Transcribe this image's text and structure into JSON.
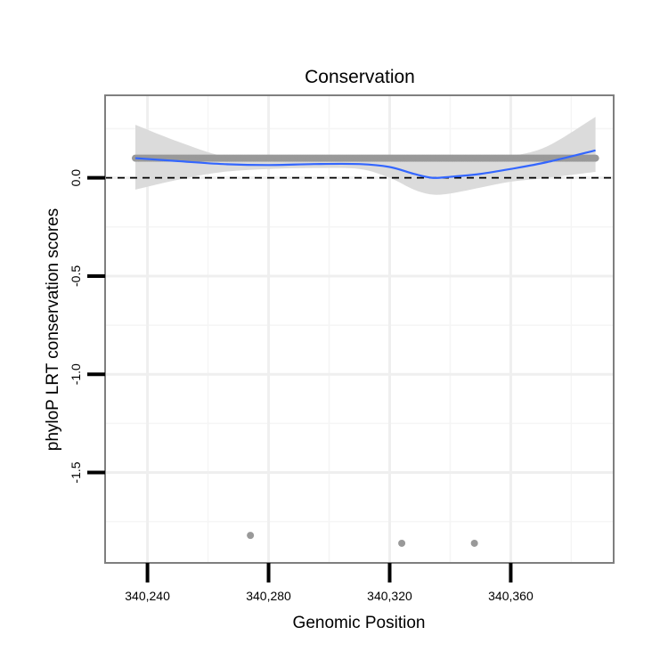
{
  "chart_data": {
    "type": "scatter",
    "title": "Conservation",
    "xlabel": "Genomic Position",
    "ylabel": "phyloP LRT conservation scores",
    "xlim": [
      340226,
      340394
    ],
    "ylim": [
      -1.96,
      0.42
    ],
    "x_ticks": [
      340240,
      340280,
      340320,
      340360
    ],
    "x_tick_labels": [
      "340,240",
      "340,280",
      "340,320",
      "340,360"
    ],
    "y_ticks": [
      0.0,
      -0.5,
      -1.0,
      -1.5
    ],
    "y_tick_labels": [
      "0.0",
      "-0.5",
      "-1.0",
      "-1.5"
    ],
    "grid": true,
    "reference_line": {
      "y": 0.0,
      "style": "dashed",
      "color": "#000000"
    },
    "dense_points": {
      "x_start": 340236,
      "x_end": 340388,
      "step": 0.5,
      "y": 0.1,
      "color": "#999999"
    },
    "outliers": [
      {
        "x": 340274,
        "y": -1.82
      },
      {
        "x": 340324,
        "y": -1.86
      },
      {
        "x": 340348,
        "y": -1.86
      }
    ],
    "smooth": {
      "color": "#3366ff",
      "band_color": "#d9d9d9",
      "x": [
        340236,
        340250,
        340265,
        340280,
        340295,
        340310,
        340320,
        340328,
        340334,
        340340,
        340350,
        340360,
        340372,
        340388
      ],
      "y": [
        0.1,
        0.085,
        0.07,
        0.065,
        0.07,
        0.07,
        0.055,
        0.02,
        0.0,
        0.005,
        0.02,
        0.045,
        0.08,
        0.14
      ],
      "lower": [
        -0.06,
        -0.01,
        0.03,
        0.045,
        0.05,
        0.045,
        0.0,
        -0.06,
        -0.085,
        -0.08,
        -0.05,
        -0.02,
        0.0,
        0.03
      ],
      "upper": [
        0.27,
        0.185,
        0.11,
        0.085,
        0.09,
        0.095,
        0.11,
        0.1,
        0.09,
        0.09,
        0.09,
        0.11,
        0.16,
        0.31
      ]
    }
  }
}
